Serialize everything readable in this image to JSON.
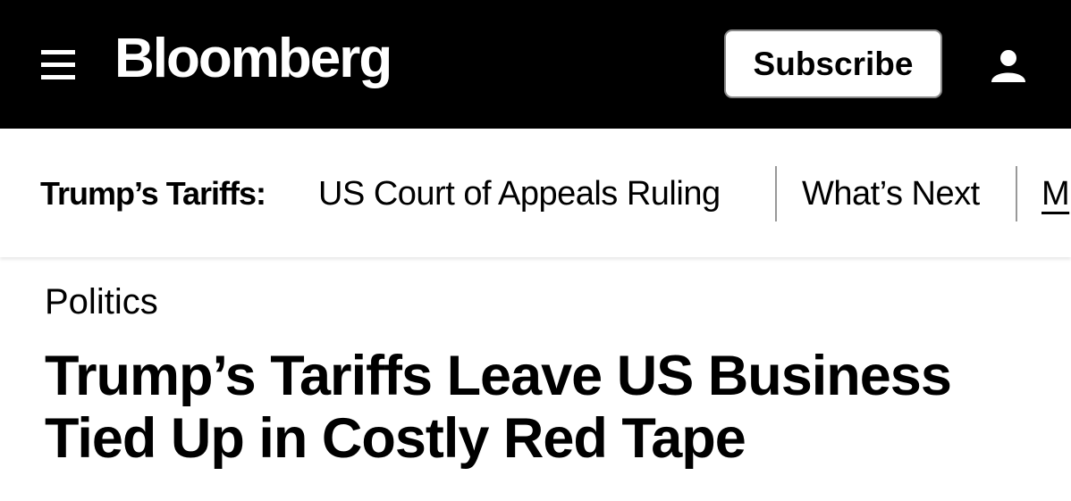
{
  "header": {
    "logo": "Bloomberg",
    "subscribe_label": "Subscribe",
    "menu_icon": "hamburger-menu-icon",
    "user_icon": "user-icon",
    "background": "#000000"
  },
  "topic_nav": {
    "label": "Trump’s Tariffs:",
    "items": [
      {
        "label": "US Court of Appeals Ruling"
      },
      {
        "label": "What’s Next"
      },
      {
        "label": "M"
      }
    ]
  },
  "article": {
    "section": "Politics",
    "headline_line1": "Trump’s Tariffs Leave US Business",
    "headline_line2": "Tied Up in Costly Red Tape"
  }
}
